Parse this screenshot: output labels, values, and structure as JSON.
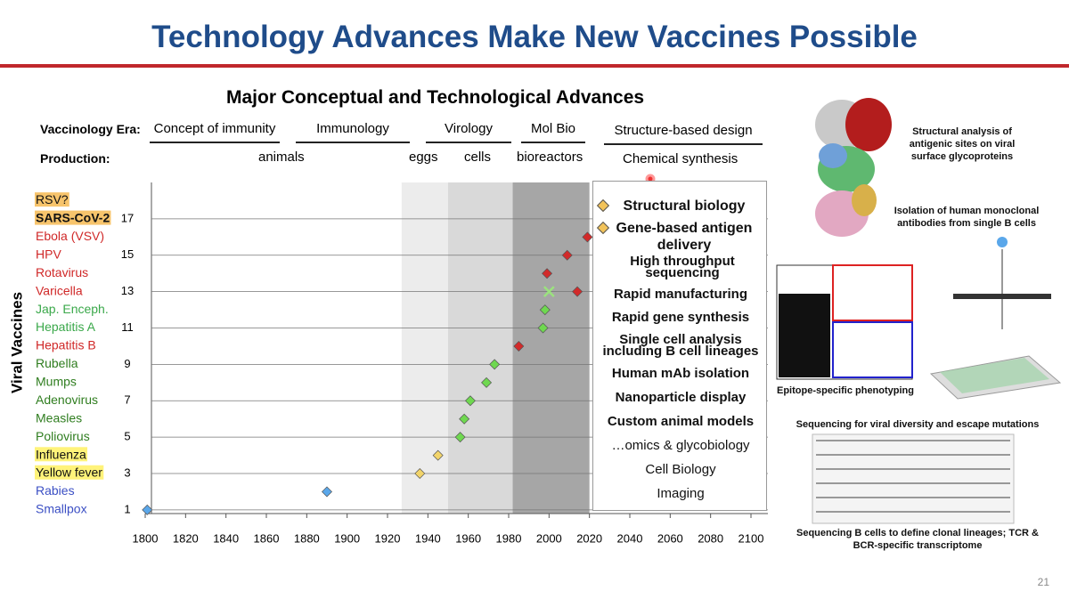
{
  "slide": {
    "title": "Technology Advances Make New Vaccines Possible",
    "page_number": "21",
    "header": {
      "title": "Major Conceptual and Technological Advances",
      "era_label": "Vaccinology Era:",
      "eras": [
        "Concept of immunity",
        "Immunology",
        "Virology",
        "Mol Bio",
        "Structure-based design"
      ],
      "production_label": "Production:",
      "production": [
        "animals",
        "eggs",
        "cells",
        "bioreactors",
        "Chemical synthesis"
      ]
    },
    "advances": [
      "Structural biology",
      "Gene-based antigen delivery",
      "High throughput sequencing",
      "Rapid manufacturing",
      "Rapid gene synthesis",
      "Single cell analysis including B cell lineages",
      "Human mAb isolation",
      "Nanoparticle display",
      "Custom animal models",
      "…omics & glycobiology",
      "Cell Biology",
      "Imaging"
    ],
    "captions": [
      "Structural analysis of antigenic sites on viral surface glycoproteins",
      "Isolation of human monoclonal antibodies from single B cells",
      "Epitope-specific phenotyping",
      "Sequencing for viral diversity and escape mutations",
      "Sequencing B cells to define clonal lineages; TCR & BCR-specific transcriptome"
    ]
  },
  "chart_data": {
    "type": "scatter",
    "y_label": "Viral Vaccines",
    "categories": [
      "Smallpox",
      "Rabies",
      "Yellow fever",
      "Influenza",
      "Poliovirus",
      "Measles",
      "Adenovirus",
      "Mumps",
      "Rubella",
      "Hepatitis B",
      "Hepatitis A",
      "Jap. Enceph.",
      "Varicella",
      "Rotavirus",
      "HPV",
      "Ebola (VSV)",
      "SARS-CoV-2",
      "RSV?"
    ],
    "category_colors": [
      "#3b4fc4",
      "#3b4fc4",
      "#111111",
      "#111111",
      "#2f7d1f",
      "#2f7d1f",
      "#2f7d1f",
      "#2f7d1f",
      "#2f7d1f",
      "#d02828",
      "#3aa84a",
      "#3aa84a",
      "#d02828",
      "#d02828",
      "#d02828",
      "#d02828",
      "#111111",
      "#111111"
    ],
    "category_highlights": [
      null,
      null,
      "#fff37a",
      "#fff37a",
      null,
      null,
      null,
      null,
      null,
      null,
      null,
      null,
      null,
      null,
      null,
      null,
      "#f7c46c",
      "#f7c46c"
    ],
    "series": [
      {
        "color": "#5aa7ea",
        "marker": "diamond",
        "x": [
          1801,
          1890
        ],
        "values": [
          1,
          2
        ]
      },
      {
        "color": "#f2d46a",
        "marker": "diamond",
        "x": [
          1936,
          1945
        ],
        "values": [
          3,
          4
        ]
      },
      {
        "color": "#6fd850",
        "marker": "diamond",
        "x": [
          1956,
          1958,
          1961,
          1969,
          1973,
          1997,
          1998
        ],
        "values": [
          5,
          6,
          7,
          8,
          9,
          11,
          12
        ]
      },
      {
        "color": "#d22a2a",
        "marker": "diamond",
        "x": [
          1985,
          1999,
          2009,
          2014,
          2019
        ],
        "values": [
          10,
          14,
          15,
          13,
          16
        ]
      },
      {
        "color": "#9be27e",
        "marker": "x",
        "x": [
          2000
        ],
        "values": [
          13
        ]
      }
    ],
    "bands": [
      {
        "from": 1927,
        "to": 1950,
        "color": "#ececec"
      },
      {
        "from": 1950,
        "to": 1982,
        "color": "#d9d9d9"
      },
      {
        "from": 1982,
        "to": 2020,
        "color": "#a6a6a6"
      }
    ],
    "xlim": [
      1800,
      2100
    ],
    "xticks": [
      1800,
      1820,
      1840,
      1860,
      1880,
      1900,
      1920,
      1940,
      1960,
      1980,
      2000,
      2020,
      2040,
      2060,
      2080,
      2100
    ],
    "ylim": [
      0.8,
      19
    ],
    "yticks": [
      1,
      3,
      5,
      7,
      9,
      11,
      13,
      15,
      17
    ],
    "grid": true
  }
}
